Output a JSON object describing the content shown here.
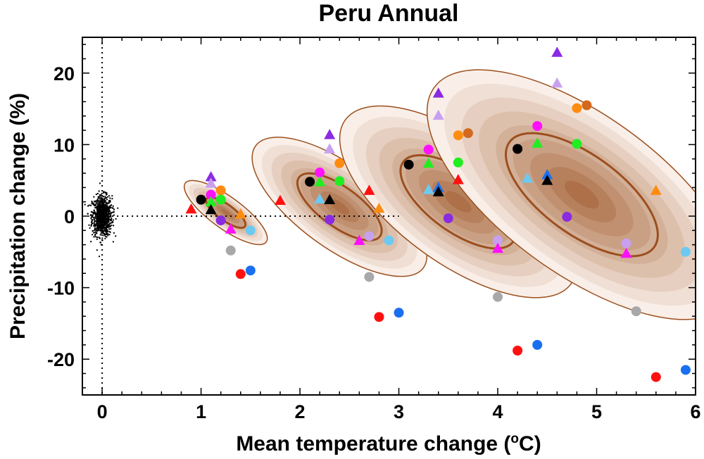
{
  "chart_data": {
    "type": "scatter",
    "title": "Peru Annual",
    "xlabel": "Mean temperature change (",
    "xlabel_sup": "o",
    "xlabel_end": "C)",
    "ylabel": "Precipitation change (%)",
    "xlim": [
      -0.2,
      6.0
    ],
    "ylim": [
      -25,
      25
    ],
    "x_ticks": [
      "0",
      "1",
      "2",
      "3",
      "4",
      "5",
      "6"
    ],
    "y_ticks": [
      "-20",
      "-10",
      "0",
      "10",
      "20"
    ],
    "reference_lines": {
      "x": 0,
      "y": 0,
      "y_line_x_range": [
        0,
        3.0
      ]
    },
    "colors": {
      "shade_outer": "#f9efe8",
      "shade_inner": "#a05a2c",
      "outline": "#9c4f1e",
      "red": "#ff1010",
      "orange": "#ff8c10",
      "green": "#20ee20",
      "magenta": "#ff10ff",
      "purple": "#8a2be2",
      "lavender": "#c8a0f0",
      "black": "#000000",
      "gray": "#a8a8a8",
      "light_blue": "#6ccaf2",
      "blue": "#1a6ff0",
      "brown": "#d2691e"
    },
    "control_cloud": {
      "center_x": 0.0,
      "center_y": 0.0,
      "spread_x": 0.05,
      "spread_y": 1.4
    },
    "distributions": [
      {
        "center_x": 1.25,
        "center_y": 0.5,
        "outer_semi_major": 7.0,
        "outer_semi_minor": 0.16,
        "inner_semi_major": 3.3,
        "inner_semi_minor": 0.08,
        "angle_deg": -54
      },
      {
        "center_x": 2.4,
        "center_y": 1.3,
        "outer_semi_major": 14.5,
        "outer_semi_minor": 0.42,
        "inner_semi_major": 7.0,
        "inner_semi_minor": 0.2,
        "angle_deg": -54
      },
      {
        "center_x": 3.6,
        "center_y": 2.0,
        "outer_semi_major": 19.5,
        "outer_semi_minor": 0.62,
        "inner_semi_major": 9.5,
        "inner_semi_minor": 0.3,
        "angle_deg": -54
      },
      {
        "center_x": 4.85,
        "center_y": 3.0,
        "outer_semi_major": 25.5,
        "outer_semi_minor": 0.8,
        "inner_semi_major": 12.5,
        "inner_semi_minor": 0.4,
        "angle_deg": -54
      }
    ],
    "points": [
      {
        "shape": "triangle",
        "color": "red",
        "x": 0.9,
        "y": 1.0
      },
      {
        "shape": "triangle",
        "color": "red",
        "x": 1.8,
        "y": 2.2
      },
      {
        "shape": "circle",
        "color": "black",
        "x": 1.0,
        "y": 2.3
      },
      {
        "shape": "triangle",
        "color": "purple",
        "x": 1.1,
        "y": 5.5
      },
      {
        "shape": "triangle",
        "color": "lavender",
        "x": 1.1,
        "y": 4.6
      },
      {
        "shape": "circle",
        "color": "orange",
        "x": 1.2,
        "y": 3.6
      },
      {
        "shape": "circle",
        "color": "magenta",
        "x": 1.1,
        "y": 3.0
      },
      {
        "shape": "circle",
        "color": "green",
        "x": 1.2,
        "y": 2.3
      },
      {
        "shape": "triangle",
        "color": "green",
        "x": 1.1,
        "y": 2.0
      },
      {
        "shape": "triangle",
        "color": "black",
        "x": 1.1,
        "y": 0.9
      },
      {
        "shape": "triangle",
        "color": "orange",
        "x": 1.4,
        "y": 0.3
      },
      {
        "shape": "circle",
        "color": "purple",
        "x": 1.2,
        "y": -0.6
      },
      {
        "shape": "triangle",
        "color": "magenta",
        "x": 1.3,
        "y": -1.8
      },
      {
        "shape": "circle",
        "color": "gray",
        "x": 1.3,
        "y": -4.8
      },
      {
        "shape": "circle",
        "color": "light_blue",
        "x": 1.5,
        "y": -2.0
      },
      {
        "shape": "circle",
        "color": "red",
        "x": 1.4,
        "y": -8.1
      },
      {
        "shape": "circle",
        "color": "blue",
        "x": 1.5,
        "y": -7.6
      },
      {
        "shape": "circle",
        "color": "black",
        "x": 2.1,
        "y": 4.8
      },
      {
        "shape": "triangle",
        "color": "purple",
        "x": 2.3,
        "y": 11.4
      },
      {
        "shape": "triangle",
        "color": "lavender",
        "x": 2.3,
        "y": 9.4
      },
      {
        "shape": "circle",
        "color": "orange",
        "x": 2.4,
        "y": 7.4
      },
      {
        "shape": "circle",
        "color": "magenta",
        "x": 2.2,
        "y": 6.1
      },
      {
        "shape": "triangle",
        "color": "green",
        "x": 2.2,
        "y": 4.8
      },
      {
        "shape": "circle",
        "color": "green",
        "x": 2.4,
        "y": 4.9
      },
      {
        "shape": "triangle",
        "color": "light_blue",
        "x": 2.2,
        "y": 2.4
      },
      {
        "shape": "triangle",
        "color": "black",
        "x": 2.3,
        "y": 2.3
      },
      {
        "shape": "triangle",
        "color": "red",
        "x": 2.7,
        "y": 3.6
      },
      {
        "shape": "triangle",
        "color": "orange",
        "x": 2.8,
        "y": 1.1
      },
      {
        "shape": "circle",
        "color": "purple",
        "x": 2.3,
        "y": -0.5
      },
      {
        "shape": "circle",
        "color": "lavender",
        "x": 2.7,
        "y": -2.8
      },
      {
        "shape": "triangle",
        "color": "magenta",
        "x": 2.6,
        "y": -3.4
      },
      {
        "shape": "circle",
        "color": "light_blue",
        "x": 2.9,
        "y": -3.4
      },
      {
        "shape": "circle",
        "color": "gray",
        "x": 2.7,
        "y": -8.5
      },
      {
        "shape": "circle",
        "color": "red",
        "x": 2.8,
        "y": -14.1
      },
      {
        "shape": "circle",
        "color": "blue",
        "x": 3.0,
        "y": -13.5
      },
      {
        "shape": "circle",
        "color": "black",
        "x": 3.1,
        "y": 7.2
      },
      {
        "shape": "triangle",
        "color": "purple",
        "x": 3.4,
        "y": 17.2
      },
      {
        "shape": "triangle",
        "color": "lavender",
        "x": 3.4,
        "y": 14.1
      },
      {
        "shape": "circle",
        "color": "orange",
        "x": 3.6,
        "y": 11.3
      },
      {
        "shape": "circle",
        "color": "brown",
        "x": 3.7,
        "y": 11.6
      },
      {
        "shape": "circle",
        "color": "magenta",
        "x": 3.3,
        "y": 9.3
      },
      {
        "shape": "triangle",
        "color": "green",
        "x": 3.3,
        "y": 7.4
      },
      {
        "shape": "circle",
        "color": "green",
        "x": 3.6,
        "y": 7.5
      },
      {
        "shape": "triangle",
        "color": "red",
        "x": 3.6,
        "y": 5.1
      },
      {
        "shape": "triangle",
        "color": "light_blue",
        "x": 3.3,
        "y": 3.7
      },
      {
        "shape": "triangle",
        "color": "blue",
        "x": 3.4,
        "y": 4.0
      },
      {
        "shape": "triangle",
        "color": "black",
        "x": 3.4,
        "y": 3.4
      },
      {
        "shape": "circle",
        "color": "purple",
        "x": 3.5,
        "y": -0.3
      },
      {
        "shape": "circle",
        "color": "lavender",
        "x": 4.0,
        "y": -3.4
      },
      {
        "shape": "triangle",
        "color": "magenta",
        "x": 4.0,
        "y": -4.5
      },
      {
        "shape": "circle",
        "color": "gray",
        "x": 4.0,
        "y": -11.3
      },
      {
        "shape": "circle",
        "color": "red",
        "x": 4.2,
        "y": -18.8
      },
      {
        "shape": "circle",
        "color": "blue",
        "x": 4.4,
        "y": -18.0
      },
      {
        "shape": "circle",
        "color": "black",
        "x": 4.2,
        "y": 9.4
      },
      {
        "shape": "triangle",
        "color": "purple",
        "x": 4.6,
        "y": 22.9
      },
      {
        "shape": "triangle",
        "color": "lavender",
        "x": 4.6,
        "y": 18.6
      },
      {
        "shape": "circle",
        "color": "orange",
        "x": 4.8,
        "y": 15.1
      },
      {
        "shape": "circle",
        "color": "brown",
        "x": 4.9,
        "y": 15.5
      },
      {
        "shape": "circle",
        "color": "magenta",
        "x": 4.4,
        "y": 12.6
      },
      {
        "shape": "triangle",
        "color": "green",
        "x": 4.4,
        "y": 10.2
      },
      {
        "shape": "circle",
        "color": "green",
        "x": 4.8,
        "y": 10.1
      },
      {
        "shape": "triangle",
        "color": "light_blue",
        "x": 4.3,
        "y": 5.3
      },
      {
        "shape": "triangle",
        "color": "blue",
        "x": 4.5,
        "y": 5.8
      },
      {
        "shape": "triangle",
        "color": "black",
        "x": 4.5,
        "y": 5.0
      },
      {
        "shape": "triangle",
        "color": "orange",
        "x": 5.6,
        "y": 3.6
      },
      {
        "shape": "circle",
        "color": "purple",
        "x": 4.7,
        "y": -0.1
      },
      {
        "shape": "circle",
        "color": "lavender",
        "x": 5.3,
        "y": -3.8
      },
      {
        "shape": "triangle",
        "color": "magenta",
        "x": 5.3,
        "y": -5.2
      },
      {
        "shape": "circle",
        "color": "light_blue",
        "x": 5.9,
        "y": -5.0
      },
      {
        "shape": "circle",
        "color": "gray",
        "x": 5.4,
        "y": -13.3
      },
      {
        "shape": "circle",
        "color": "red",
        "x": 5.6,
        "y": -22.5
      },
      {
        "shape": "circle",
        "color": "blue",
        "x": 5.9,
        "y": -21.5
      }
    ]
  }
}
